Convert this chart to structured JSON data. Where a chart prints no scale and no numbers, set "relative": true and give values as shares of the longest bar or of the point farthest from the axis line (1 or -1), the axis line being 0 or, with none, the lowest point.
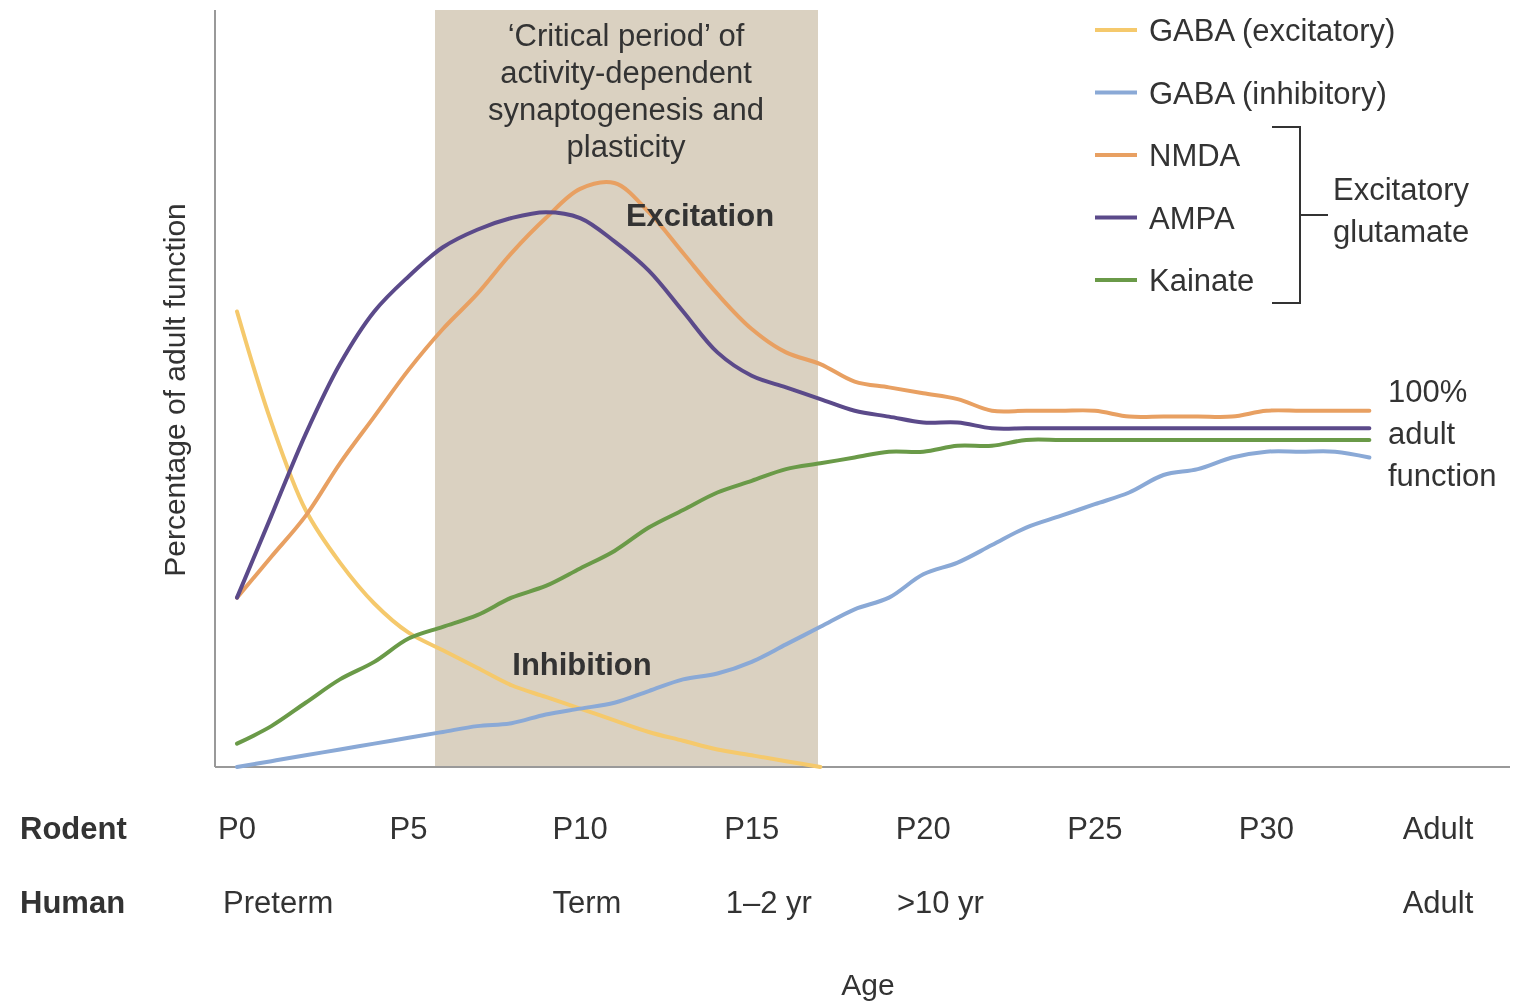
{
  "chart_data": {
    "type": "line",
    "relative": true,
    "xlabel": "Age",
    "categories": [
      "P0",
      null,
      null,
      null,
      null,
      "P5",
      null,
      null,
      null,
      null,
      "P10",
      null,
      null,
      null,
      null,
      "P15",
      null,
      null,
      null,
      null,
      "P20",
      null,
      null,
      null,
      null,
      "P25",
      null,
      null,
      null,
      null,
      "P30",
      null,
      null,
      null,
      null,
      "Adult"
    ],
    "ylabel": "Percentage of adult function",
    "legend": "top right",
    "line_style": "solid",
    "annotations": [
      "‘Critical period’ of activity-dependent synaptogenesis and plasticity",
      "Excitation",
      "Inhibition",
      "100% adult function",
      "Rodent",
      "Human",
      "Excitatory glutamate",
      "Preterm",
      "Term",
      "1–2 yr",
      ">10 yr",
      "Adult"
    ],
    "series": [
      {
        "name": "GABA (excitatory)",
        "color": "#f5c96c",
        "values": [
          0.78,
          0.59,
          0.44,
          0.35,
          0.28,
          0.23,
          0.2,
          0.17,
          0.14,
          0.12,
          0.1,
          0.08,
          0.06,
          0.045,
          0.03,
          0.02,
          0.01,
          0.0,
          null,
          null,
          null,
          null,
          null,
          null,
          null,
          null,
          null,
          null,
          null,
          null,
          null,
          null,
          null,
          null,
          null,
          null
        ]
      },
      {
        "name": "GABA (inhibitory)",
        "color": "#8aa9d6",
        "values": [
          0.0,
          0.01,
          0.02,
          0.03,
          0.04,
          0.05,
          0.06,
          0.07,
          0.075,
          0.09,
          0.1,
          0.11,
          0.13,
          0.15,
          0.16,
          0.18,
          0.21,
          0.24,
          0.27,
          0.29,
          0.33,
          0.35,
          0.38,
          0.41,
          0.43,
          0.45,
          0.47,
          0.5,
          0.51,
          0.53,
          0.54,
          0.54,
          0.54,
          0.53,
          null,
          null
        ]
      },
      {
        "name": "NMDA",
        "color": "#e8a062",
        "values": [
          0.29,
          0.36,
          0.43,
          0.52,
          0.6,
          0.68,
          0.75,
          0.81,
          0.88,
          0.94,
          0.99,
          1.0,
          0.95,
          0.88,
          0.81,
          0.75,
          0.71,
          0.69,
          0.66,
          0.65,
          0.64,
          0.63,
          0.61,
          0.61,
          0.61,
          0.61,
          0.6,
          0.6,
          0.6,
          0.6,
          0.61,
          0.61,
          0.61,
          0.61,
          null,
          null
        ]
      },
      {
        "name": "AMPA",
        "color": "#5b4a8a",
        "values": [
          0.29,
          0.43,
          0.57,
          0.69,
          0.78,
          0.84,
          0.89,
          0.92,
          0.94,
          0.95,
          0.94,
          0.9,
          0.85,
          0.78,
          0.71,
          0.67,
          0.65,
          0.63,
          0.61,
          0.6,
          0.59,
          0.59,
          0.58,
          0.58,
          0.58,
          0.58,
          0.58,
          0.58,
          0.58,
          0.58,
          0.58,
          0.58,
          0.58,
          0.58,
          null,
          null
        ]
      },
      {
        "name": "Kainate",
        "color": "#6a9a48",
        "values": [
          0.04,
          0.07,
          0.11,
          0.15,
          0.18,
          0.22,
          0.24,
          0.26,
          0.29,
          0.31,
          0.34,
          0.37,
          0.41,
          0.44,
          0.47,
          0.49,
          0.51,
          0.52,
          0.53,
          0.54,
          0.54,
          0.55,
          0.55,
          0.56,
          0.56,
          0.56,
          0.56,
          0.56,
          0.56,
          0.56,
          0.56,
          0.56,
          0.56,
          0.56,
          null,
          null
        ]
      }
    ]
  }
}
